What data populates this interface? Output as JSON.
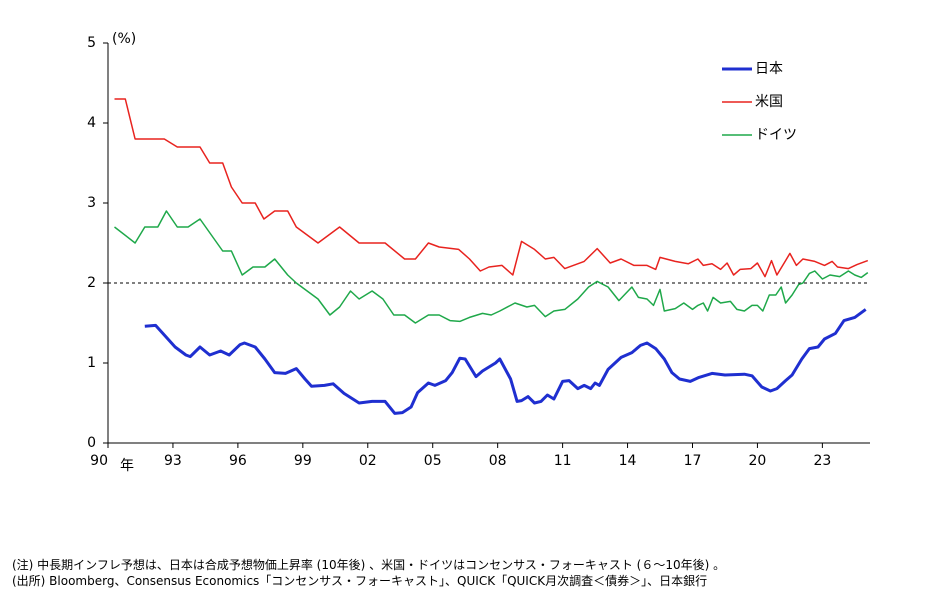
{
  "chart_data": {
    "type": "line",
    "y_unit": "(%)",
    "x_unit": "年",
    "xlim": [
      1990,
      2025.2
    ],
    "xticks": [
      {
        "value": 1990,
        "label": "90"
      },
      {
        "value": 1993,
        "label": "93"
      },
      {
        "value": 1996,
        "label": "96"
      },
      {
        "value": 1999,
        "label": "99"
      },
      {
        "value": 2002,
        "label": "02"
      },
      {
        "value": 2005,
        "label": "05"
      },
      {
        "value": 2008,
        "label": "08"
      },
      {
        "value": 2011,
        "label": "11"
      },
      {
        "value": 2014,
        "label": "14"
      },
      {
        "value": 2017,
        "label": "17"
      },
      {
        "value": 2020,
        "label": "20"
      },
      {
        "value": 2023,
        "label": "23"
      }
    ],
    "ylim": [
      0,
      5
    ],
    "yticks": [
      0,
      1,
      2,
      3,
      4,
      5
    ],
    "reference_line": 2,
    "legend": "upper right",
    "series": [
      {
        "name": "日本",
        "color": "#1f2fd0",
        "width": 3,
        "x": [
          1991.7,
          1992.2,
          1992.6,
          1993.1,
          1993.6,
          1993.8,
          1994.25,
          1994.7,
          1995.2,
          1995.6,
          1996.1,
          1996.3,
          1996.8,
          1997.25,
          1997.7,
          1998.2,
          1998.7,
          1999.1,
          1999.4,
          2000,
          2000.4,
          2000.9,
          2001.6,
          2002.2,
          2002.8,
          2003.25,
          2003.6,
          2004,
          2004.3,
          2004.8,
          2005.1,
          2005.6,
          2005.9,
          2006.25,
          2006.5,
          2007.0,
          2007.3,
          2007.6,
          2007.9,
          2008.1,
          2008.6,
          2008.9,
          2009.1,
          2009.4,
          2009.7,
          2010.0,
          2010.3,
          2010.6,
          2011.0,
          2011.3,
          2011.7,
          2012.0,
          2012.3,
          2012.5,
          2012.7,
          2013.1,
          2013.7,
          2014.2,
          2014.6,
          2014.9,
          2015.3,
          2015.7,
          2016.05,
          2016.4,
          2016.9,
          2017.3,
          2017.9,
          2018.5,
          2019.4,
          2019.75,
          2020.2,
          2020.6,
          2020.9,
          2021.3,
          2021.6,
          2022.05,
          2022.4,
          2022.8,
          2023.1,
          2023.6,
          2024.0,
          2024.5,
          2025.0
        ],
        "values": [
          1.46,
          1.47,
          1.35,
          1.2,
          1.1,
          1.08,
          1.2,
          1.1,
          1.15,
          1.1,
          1.23,
          1.25,
          1.2,
          1.05,
          0.88,
          0.87,
          0.93,
          0.8,
          0.71,
          0.72,
          0.74,
          0.62,
          0.5,
          0.52,
          0.52,
          0.37,
          0.38,
          0.45,
          0.63,
          0.75,
          0.72,
          0.78,
          0.88,
          1.06,
          1.05,
          0.83,
          0.9,
          0.95,
          1.0,
          1.05,
          0.8,
          0.52,
          0.53,
          0.58,
          0.5,
          0.52,
          0.6,
          0.55,
          0.77,
          0.78,
          0.68,
          0.72,
          0.68,
          0.75,
          0.72,
          0.92,
          1.07,
          1.13,
          1.22,
          1.25,
          1.18,
          1.05,
          0.88,
          0.8,
          0.77,
          0.82,
          0.87,
          0.85,
          0.86,
          0.84,
          0.7,
          0.65,
          0.68,
          0.78,
          0.85,
          1.05,
          1.18,
          1.2,
          1.3,
          1.37,
          1.53,
          1.57,
          1.67
        ]
      },
      {
        "name": "米国",
        "color": "#e8231f",
        "width": 1.5,
        "x": [
          1990.3,
          1990.8,
          1991.25,
          1992.6,
          1993.2,
          1994.25,
          1994.7,
          1995.3,
          1995.7,
          1996.2,
          1996.8,
          1997.2,
          1997.7,
          1998.3,
          1998.7,
          1999.7,
          2000.7,
          2001.6,
          2002.8,
          2003.7,
          2004.2,
          2004.8,
          2005.3,
          2006.2,
          2006.7,
          2007.2,
          2007.6,
          2008.2,
          2008.7,
          2009.1,
          2009.7,
          2010.2,
          2010.6,
          2011.1,
          2012.0,
          2012.6,
          2013.2,
          2013.7,
          2014.3,
          2014.9,
          2015.3,
          2015.5,
          2016.2,
          2016.8,
          2017.25,
          2017.5,
          2017.9,
          2018.3,
          2018.6,
          2018.9,
          2019.2,
          2019.7,
          2020.0,
          2020.35,
          2020.65,
          2020.9,
          2021.3,
          2021.5,
          2021.8,
          2022.1,
          2022.65,
          2023.1,
          2023.45,
          2023.7,
          2024.2,
          2024.6,
          2025.1
        ],
        "values": [
          4.3,
          4.3,
          3.8,
          3.8,
          3.7,
          3.7,
          3.5,
          3.5,
          3.2,
          3.0,
          3.0,
          2.8,
          2.9,
          2.9,
          2.7,
          2.5,
          2.7,
          2.5,
          2.5,
          2.3,
          2.3,
          2.5,
          2.45,
          2.42,
          2.3,
          2.15,
          2.2,
          2.22,
          2.1,
          2.52,
          2.42,
          2.3,
          2.32,
          2.18,
          2.27,
          2.43,
          2.25,
          2.3,
          2.22,
          2.22,
          2.17,
          2.32,
          2.27,
          2.24,
          2.3,
          2.22,
          2.24,
          2.17,
          2.25,
          2.1,
          2.17,
          2.18,
          2.25,
          2.08,
          2.28,
          2.1,
          2.28,
          2.37,
          2.22,
          2.3,
          2.27,
          2.22,
          2.27,
          2.2,
          2.18,
          2.23,
          2.28
        ]
      },
      {
        "name": "ドイツ",
        "color": "#1fa84a",
        "width": 1.5,
        "x": [
          1990.3,
          1991.25,
          1991.7,
          1992.3,
          1992.7,
          1993.2,
          1993.7,
          1994.25,
          1995.3,
          1995.7,
          1996.2,
          1996.7,
          1997.25,
          1997.7,
          1998.3,
          1998.7,
          1999.7,
          2000.25,
          2000.7,
          2001.2,
          2001.6,
          2002.2,
          2002.7,
          2003.2,
          2003.7,
          2004.2,
          2004.8,
          2005.3,
          2005.8,
          2006.25,
          2006.7,
          2007.3,
          2007.7,
          2008.1,
          2008.8,
          2009.35,
          2009.7,
          2010.2,
          2010.6,
          2011.1,
          2011.7,
          2012.2,
          2012.6,
          2013.1,
          2013.6,
          2014.2,
          2014.5,
          2014.9,
          2015.2,
          2015.5,
          2015.7,
          2016.2,
          2016.6,
          2017.0,
          2017.25,
          2017.5,
          2017.7,
          2017.95,
          2018.3,
          2018.75,
          2019.05,
          2019.4,
          2019.75,
          2020.0,
          2020.25,
          2020.55,
          2020.85,
          2021.1,
          2021.3,
          2021.6,
          2021.9,
          2022.1,
          2022.4,
          2022.65,
          2023.0,
          2023.35,
          2023.8,
          2024.2,
          2024.5,
          2024.8,
          2025.1
        ],
        "values": [
          2.7,
          2.5,
          2.7,
          2.7,
          2.9,
          2.7,
          2.7,
          2.8,
          2.4,
          2.4,
          2.1,
          2.2,
          2.2,
          2.3,
          2.1,
          2.0,
          1.8,
          1.6,
          1.7,
          1.9,
          1.8,
          1.9,
          1.8,
          1.6,
          1.6,
          1.5,
          1.6,
          1.6,
          1.53,
          1.52,
          1.57,
          1.62,
          1.6,
          1.65,
          1.75,
          1.7,
          1.72,
          1.58,
          1.65,
          1.67,
          1.8,
          1.95,
          2.02,
          1.95,
          1.78,
          1.95,
          1.82,
          1.8,
          1.72,
          1.92,
          1.65,
          1.68,
          1.75,
          1.67,
          1.72,
          1.75,
          1.65,
          1.82,
          1.75,
          1.77,
          1.67,
          1.65,
          1.72,
          1.72,
          1.65,
          1.85,
          1.85,
          1.95,
          1.75,
          1.85,
          1.98,
          2.0,
          2.12,
          2.15,
          2.05,
          2.1,
          2.08,
          2.15,
          2.1,
          2.07,
          2.13
        ]
      }
    ]
  },
  "notes": [
    "(注) 中長期インフレ予想は、日本は合成予想物価上昇率 (10年後) 、米国・ドイツはコンセンサス・フォーキャスト (６～10年後) 。",
    "(出所) Bloomberg、Consensus Economics「コンセンサス・フォーキャスト」、QUICK「QUICK月次調査＜債券＞」、日本銀行"
  ]
}
